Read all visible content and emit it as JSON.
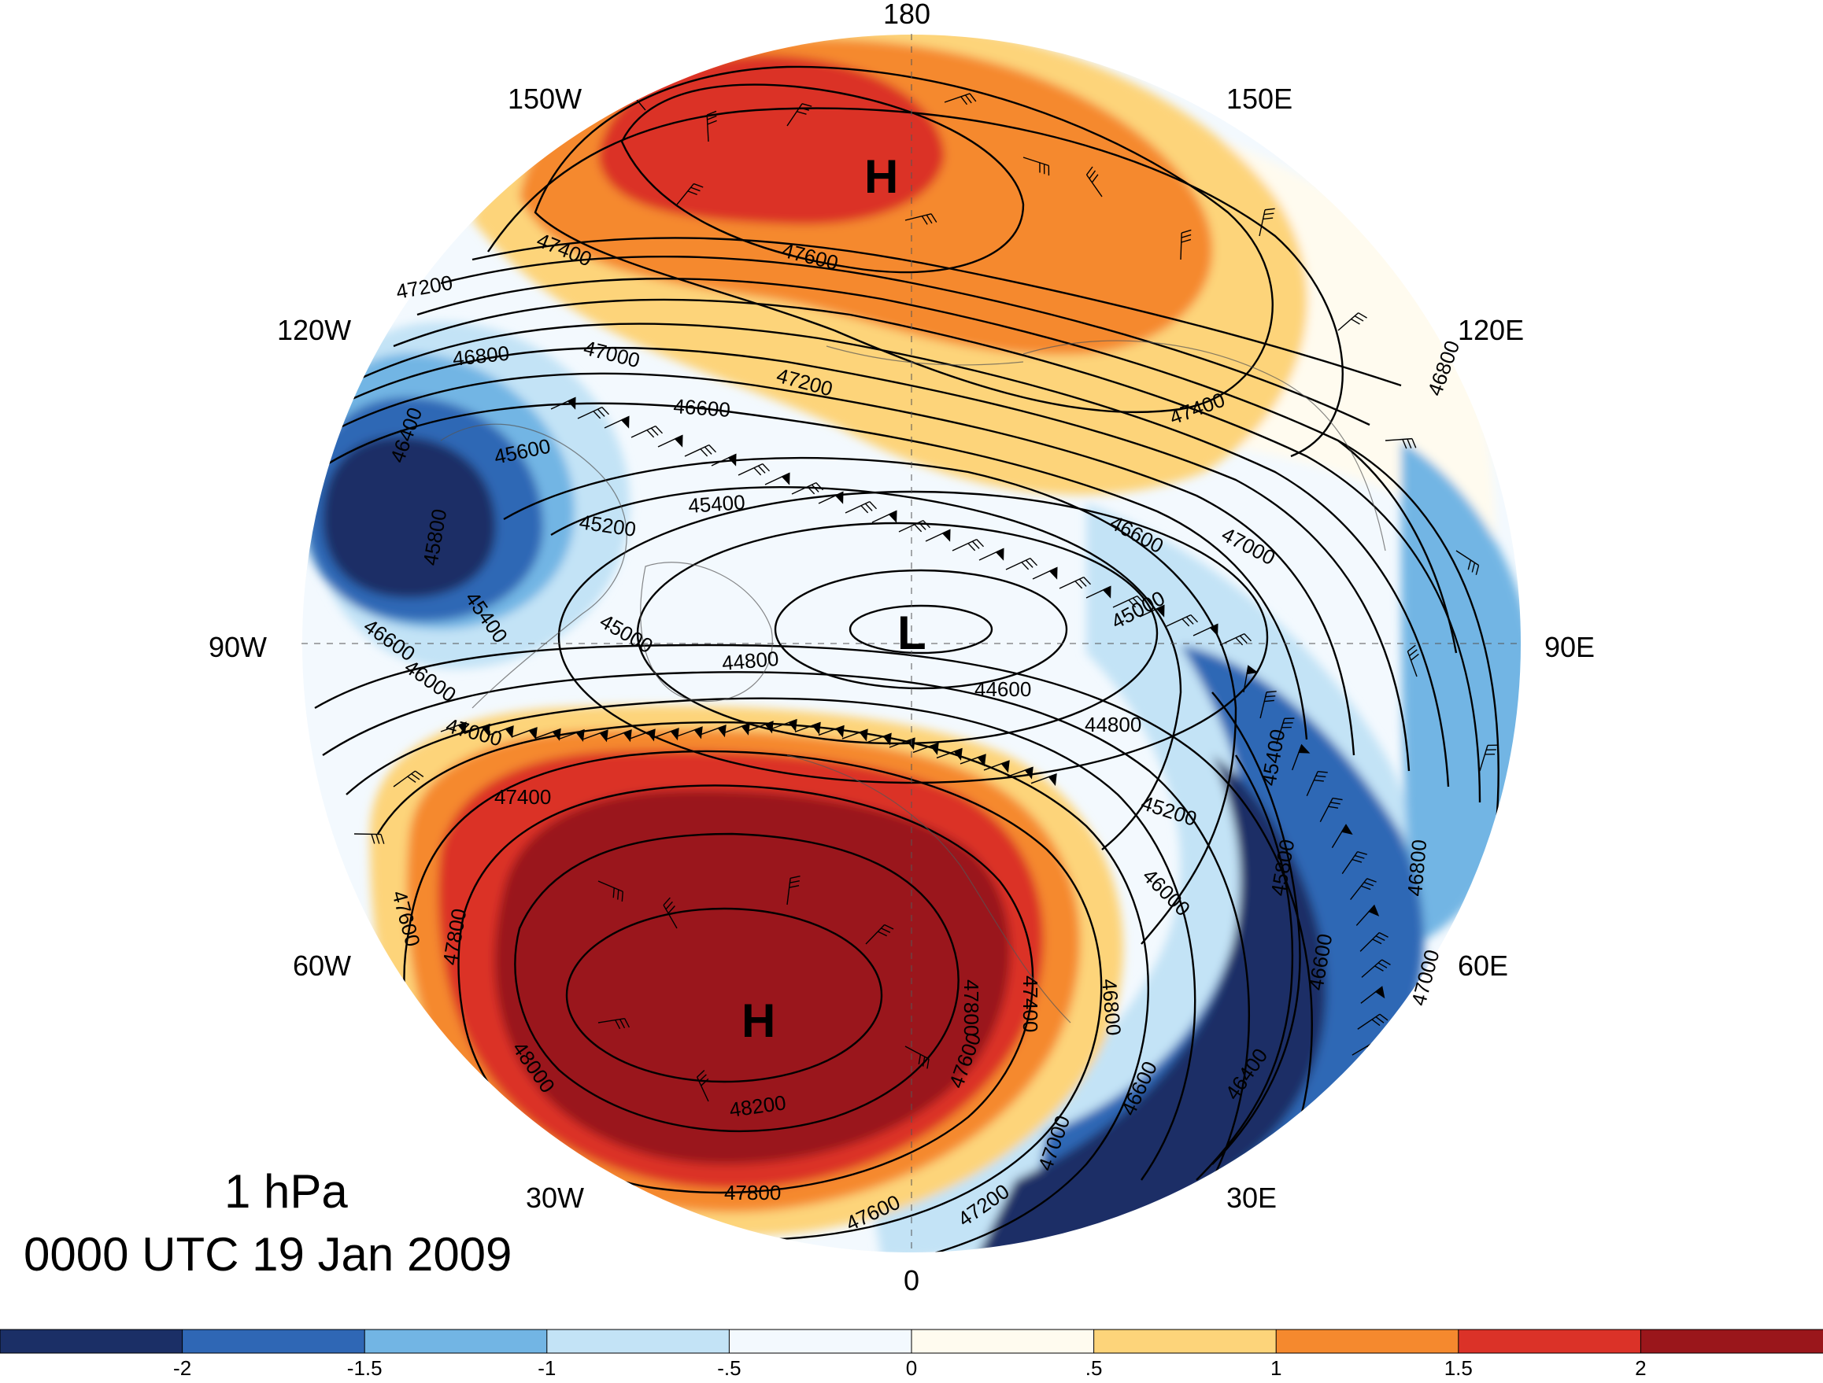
{
  "title": {
    "level": "1 hPa",
    "time": "0000 UTC 19 Jan 2009"
  },
  "longitude_labels": {
    "lon_180": "180",
    "lon_150w": "150W",
    "lon_150e": "150E",
    "lon_120w": "120W",
    "lon_120e": "120E",
    "lon_90w": "90W",
    "lon_90e": "90E",
    "lon_60w": "60W",
    "lon_60e": "60E",
    "lon_30w": "30W",
    "lon_30e": "30E",
    "lon_0": "0"
  },
  "markers": {
    "high_pacific": "H",
    "high_atlantic": "H",
    "low_pole": "L"
  },
  "contour_labels": {
    "c1": "47400",
    "c2": "47600",
    "c3": "47200",
    "c4": "47000",
    "c5": "46800",
    "c6": "46600",
    "c7": "47200",
    "c8": "47400",
    "c9": "46400",
    "c10": "45600",
    "c11": "45400",
    "c12": "45200",
    "c13": "45800",
    "c14": "45400",
    "c15": "46600",
    "c16": "46000",
    "c17": "45000",
    "c18": "44800",
    "c19": "44600",
    "c20": "44800",
    "c21": "45000",
    "c22": "46600",
    "c23": "47000",
    "c24": "47000",
    "c25": "47400",
    "c26": "47600",
    "c27": "47800",
    "c28": "48000",
    "c29": "48200",
    "c30": "47800",
    "c31": "47600",
    "c32": "47200",
    "c33": "47000",
    "c34": "46800",
    "c35": "45200",
    "c36": "46000",
    "c37": "45400",
    "c38": "45800",
    "c39": "46800",
    "c40": "46600",
    "c41": "46400",
    "c42": "47000",
    "c43": "46600",
    "c44": "47600",
    "c45": "47400",
    "c46": "47800",
    "c47": "46800"
  },
  "colorbar": {
    "ticks": [
      "-2",
      "-1.5",
      "-1",
      "-.5",
      "0",
      ".5",
      "1",
      "1.5",
      "2"
    ],
    "colors": [
      "#1b2f66",
      "#2f67b5",
      "#72b5e4",
      "#c3e3f6",
      "#f3f9fe",
      "#fffbef",
      "#fdd47a",
      "#f5892e",
      "#db3228",
      "#9a161b"
    ]
  }
}
